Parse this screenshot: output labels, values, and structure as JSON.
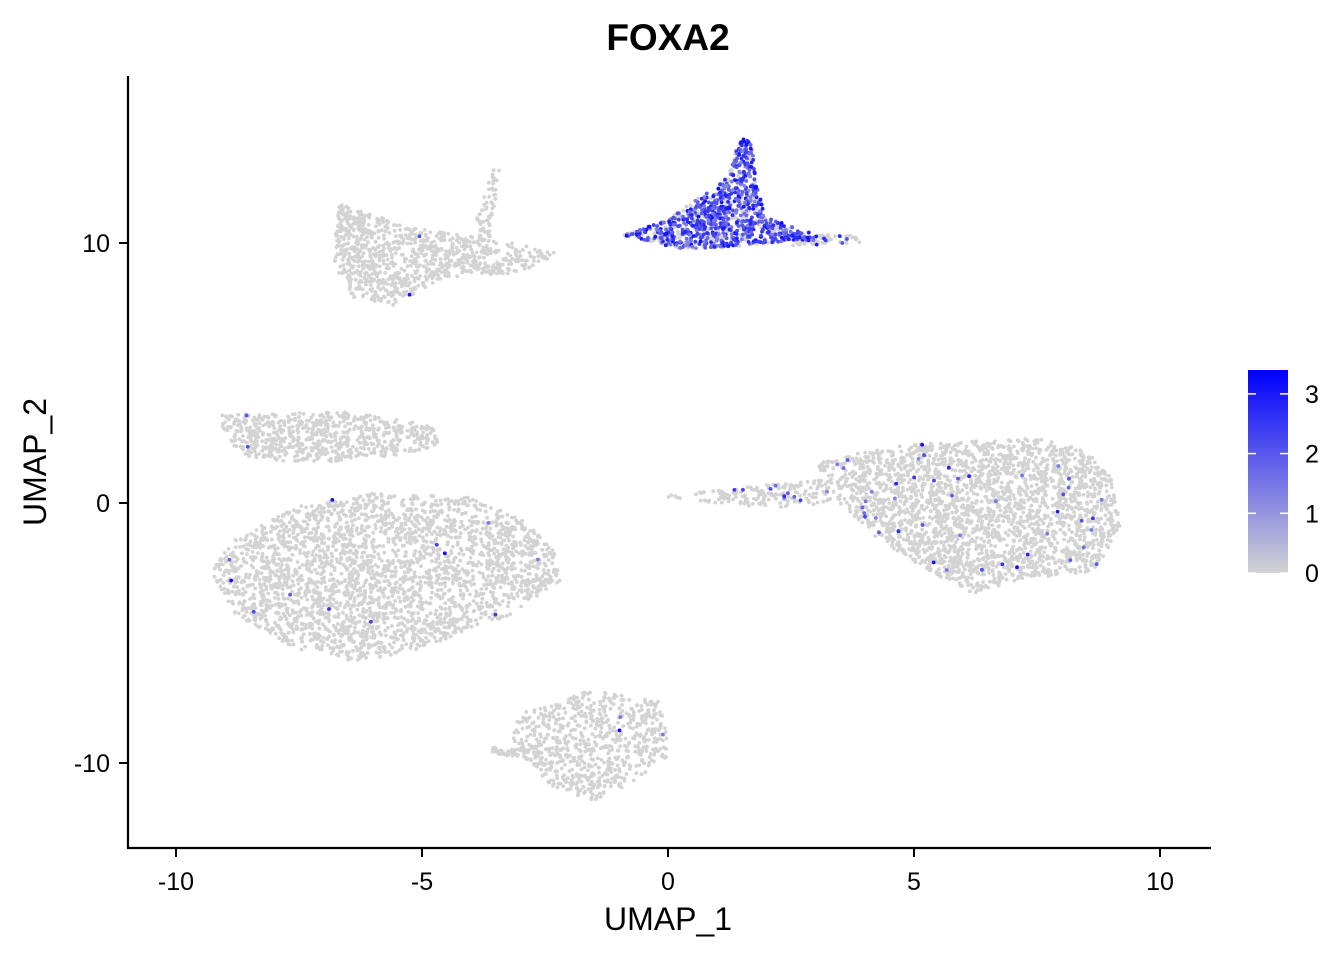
{
  "chart_data": {
    "type": "scatter",
    "title": "FOXA2",
    "xlabel": "UMAP_1",
    "ylabel": "UMAP_2",
    "xlim": [
      -11,
      11
    ],
    "ylim": [
      -13.3,
      16.4
    ],
    "x_ticks": [
      -10,
      -5,
      0,
      5,
      10
    ],
    "y_ticks": [
      -10,
      0,
      10
    ],
    "x_tick_labels": [
      "-10",
      "-5",
      "0",
      "5",
      "10"
    ],
    "y_tick_labels": [
      "-10",
      "0",
      "10"
    ],
    "grid": false,
    "legend": {
      "placement": "right",
      "kind": "colorbar",
      "title": "",
      "range": [
        0,
        3.4
      ],
      "ticks": [
        0,
        1,
        2,
        3
      ],
      "tick_labels": [
        "0",
        "1",
        "2",
        "3"
      ],
      "low_color": "#d3d3d3",
      "high_color": "#0000ff"
    },
    "clusters": [
      {
        "id": "upper-left",
        "center": [
          -5.5,
          9.5
        ],
        "expression": "low"
      },
      {
        "id": "upper-middle",
        "center": [
          1.2,
          10.7
        ],
        "expression": "high"
      },
      {
        "id": "middle-left",
        "center": [
          -5.8,
          -2.0
        ],
        "expression": "low"
      },
      {
        "id": "middle-right",
        "center": [
          6.5,
          -0.5
        ],
        "expression": "low"
      },
      {
        "id": "bottom",
        "center": [
          -1.5,
          -9.8
        ],
        "expression": "none"
      }
    ]
  }
}
